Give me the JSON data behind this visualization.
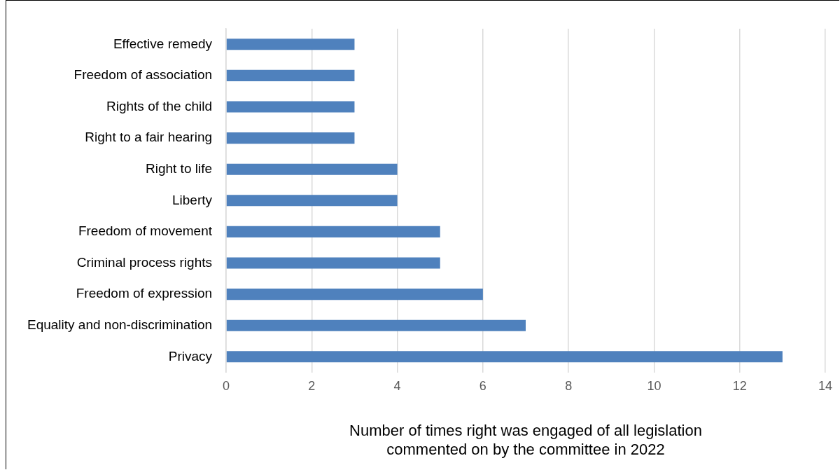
{
  "chart_data": {
    "type": "bar",
    "orientation": "horizontal",
    "xlabel": "Number of times right was engaged of all legislation commented on by the committee in 2022",
    "categories": [
      "Effective remedy",
      "Freedom of association",
      "Rights of the child",
      "Right to a fair hearing",
      "Right to life",
      "Liberty",
      "Freedom of movement",
      "Criminal process rights",
      "Freedom of expression",
      "Equality and non-discrimination",
      "Privacy"
    ],
    "values": [
      3,
      3,
      3,
      3,
      4,
      4,
      5,
      5,
      6,
      7,
      13
    ],
    "color": "#4f81bd",
    "xlim": [
      0,
      14
    ],
    "xticks": [
      0,
      2,
      4,
      6,
      8,
      10,
      12,
      14
    ],
    "grid": "x"
  }
}
